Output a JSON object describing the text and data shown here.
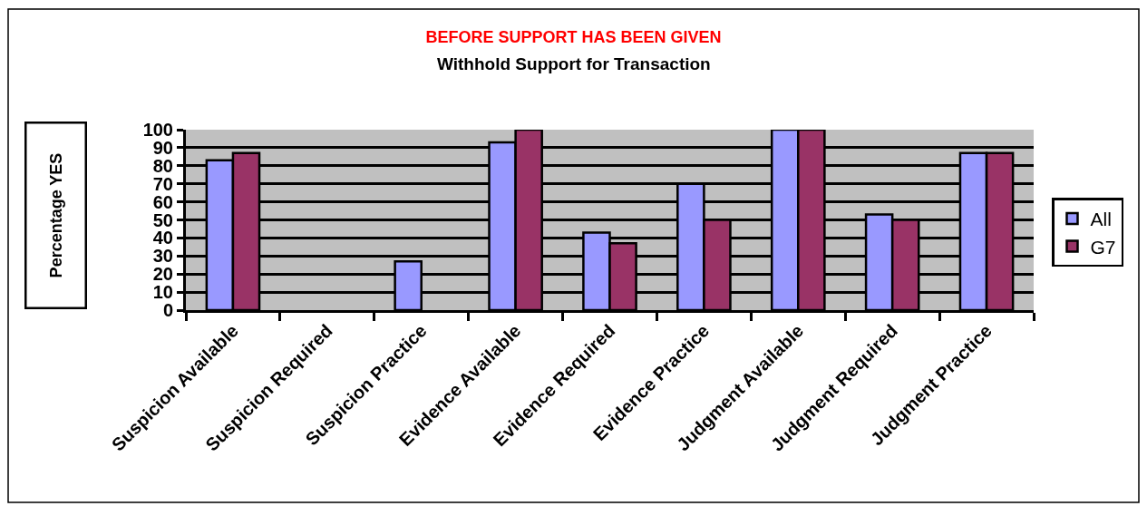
{
  "chart_data": {
    "type": "bar",
    "title": "BEFORE SUPPORT HAS BEEN GIVEN",
    "subtitle": "Withhold Support for Transaction",
    "ylabel": "Percentage YES",
    "categories": [
      "Suspicion Available",
      "Suspicion Required",
      "Suspicion Practice",
      "Evidence Available",
      "Evidence Required",
      "Evidence Practice",
      "Judgment Available",
      "Judgment Required",
      "Judgment Practice"
    ],
    "series": [
      {
        "name": "All",
        "color": "#9999ff",
        "values": [
          83,
          null,
          27,
          93,
          43,
          70,
          100,
          53,
          87
        ]
      },
      {
        "name": "G7",
        "color": "#993366",
        "values": [
          87,
          null,
          null,
          100,
          37,
          50,
          100,
          50,
          87
        ]
      }
    ],
    "ylim": [
      0,
      100
    ],
    "yticks": [
      0,
      10,
      20,
      30,
      40,
      50,
      60,
      70,
      80,
      90,
      100
    ],
    "grid": "y",
    "legend": "right"
  }
}
